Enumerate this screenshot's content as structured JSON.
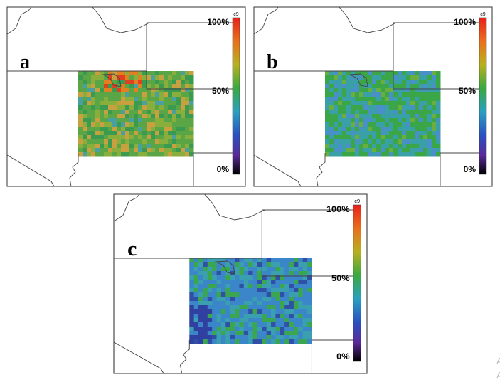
{
  "panels": [
    {
      "label": "a",
      "colorbar": {
        "top": "c9",
        "max": "100%",
        "mid": "50%",
        "min": "0%"
      }
    },
    {
      "label": "b",
      "colorbar": {
        "top": "c9",
        "max": "100%",
        "mid": "50%",
        "min": "0%"
      }
    },
    {
      "label": "c",
      "colorbar": {
        "top": "c9",
        "max": "100%",
        "mid": "50%",
        "min": "0%"
      }
    }
  ],
  "fragments": [
    "A",
    "A"
  ]
}
